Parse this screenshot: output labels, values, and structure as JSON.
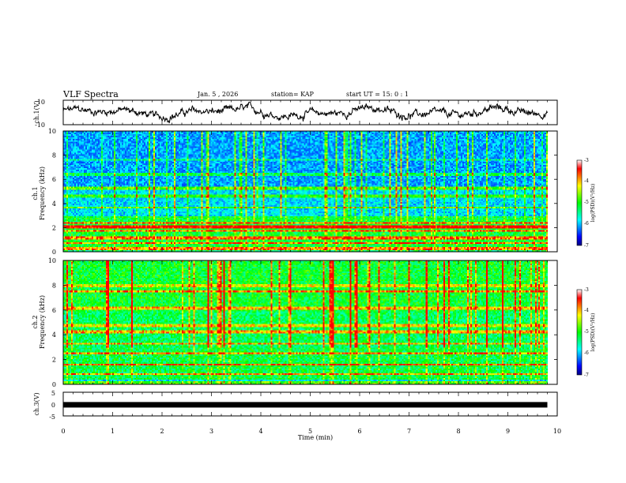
{
  "header": {
    "title": "VLF Spectra",
    "date": "Jan. 5 , 2026",
    "station": "station= KAP",
    "start_ut": "start UT =  15: 0  : 1"
  },
  "colors": {
    "colorbar": [
      "#000080",
      "#0000ff",
      "#0080ff",
      "#00ffff",
      "#00ff80",
      "#00ff00",
      "#80ff00",
      "#ffff00",
      "#ff8000",
      "#ff0000",
      "#ffffff"
    ]
  },
  "chart_data": [
    {
      "type": "line",
      "id": "ch1-waveform",
      "ylabel": "ch.1(V)",
      "ylim": [
        -10,
        10
      ],
      "yticks": [
        "10",
        "-10"
      ],
      "xlim": [
        0,
        10
      ],
      "description": "noisy voltage trace fluctuating roughly between -5 and 5 V"
    },
    {
      "type": "heatmap",
      "id": "ch1-spectrogram",
      "ylabel_line1": "ch.1",
      "ylabel_line2": "Frequency (kHz)",
      "ylim": [
        0,
        10
      ],
      "yticks": [
        "0",
        "2",
        "4",
        "6",
        "8",
        "10"
      ],
      "xlim": [
        0,
        10
      ],
      "colorbar": {
        "label": "log(PSD)(V²/Hz)",
        "range": [
          -7,
          -3
        ],
        "ticks": [
          "-3",
          "-4",
          "-5",
          "-6",
          "-7"
        ]
      }
    },
    {
      "type": "heatmap",
      "id": "ch2-spectrogram",
      "ylabel_line1": "ch.2",
      "ylabel_line2": "Frequency (kHz)",
      "ylim": [
        0,
        10
      ],
      "yticks": [
        "0",
        "2",
        "4",
        "6",
        "8",
        "10"
      ],
      "xlim": [
        0,
        10
      ],
      "colorbar": {
        "label": "log(PSD)(V²/Hz)",
        "range": [
          -7,
          -3
        ],
        "ticks": [
          "-3",
          "-4",
          "-5",
          "-6",
          "-7"
        ]
      }
    },
    {
      "type": "line",
      "id": "ch3-trace",
      "ylabel": "ch.3(V)",
      "ylim": [
        -5,
        5
      ],
      "yticks": [
        "5",
        "0",
        "-5"
      ],
      "xlim": [
        0,
        9.8
      ],
      "value": -0.3,
      "description": "flat thick trace near 0 V"
    }
  ],
  "xaxis": {
    "label": "Time  (min)",
    "ticks": [
      "0",
      "1",
      "2",
      "3",
      "4",
      "5",
      "6",
      "7",
      "8",
      "9",
      "10"
    ]
  }
}
